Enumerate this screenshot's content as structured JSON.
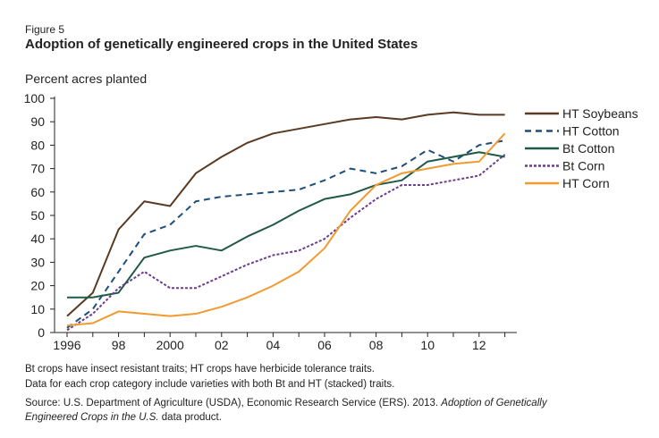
{
  "figure_label": "Figure 5",
  "chart_data": {
    "type": "line",
    "title": "Adoption of genetically engineered crops in the United States",
    "ylabel": "Percent acres planted",
    "xlabel": "",
    "ylim": [
      0,
      100
    ],
    "xlim": [
      1996,
      2013
    ],
    "yticks": [
      "0",
      "10",
      "20",
      "30",
      "40",
      "50",
      "60",
      "70",
      "80",
      "90",
      "100"
    ],
    "xticks": [
      {
        "v": 1996,
        "label": "1996"
      },
      {
        "v": 1998,
        "label": "98"
      },
      {
        "v": 2000,
        "label": "2000"
      },
      {
        "v": 2002,
        "label": "02"
      },
      {
        "v": 2004,
        "label": "04"
      },
      {
        "v": 2006,
        "label": "06"
      },
      {
        "v": 2008,
        "label": "08"
      },
      {
        "v": 2010,
        "label": "10"
      },
      {
        "v": 2012,
        "label": "12"
      }
    ],
    "x": [
      1996,
      1997,
      1998,
      1999,
      2000,
      2001,
      2002,
      2003,
      2004,
      2005,
      2006,
      2007,
      2008,
      2009,
      2010,
      2011,
      2012,
      2013
    ],
    "legend_position": "right",
    "grid": false,
    "series": [
      {
        "name": "HT Soybeans",
        "color": "#5a3a22",
        "dash": "",
        "values": [
          7,
          17,
          44,
          56,
          54,
          68,
          75,
          81,
          85,
          87,
          89,
          91,
          92,
          91,
          93,
          94,
          93,
          93
        ]
      },
      {
        "name": "HT Cotton",
        "color": "#1f4e7a",
        "dash": "7,5",
        "values": [
          2,
          10,
          26,
          42,
          46,
          56,
          58,
          59,
          60,
          61,
          65,
          70,
          68,
          71,
          78,
          73,
          80,
          82
        ]
      },
      {
        "name": "Bt Cotton",
        "color": "#1e5a46",
        "dash": "",
        "values": [
          15,
          15,
          17,
          32,
          35,
          37,
          35,
          41,
          46,
          52,
          57,
          59,
          63,
          65,
          73,
          75,
          77,
          75
        ]
      },
      {
        "name": "Bt Corn",
        "color": "#6a3d8f",
        "dash": "3,2",
        "values": [
          1,
          8,
          19,
          26,
          19,
          19,
          24,
          29,
          33,
          35,
          40,
          49,
          57,
          63,
          63,
          65,
          67,
          76
        ]
      },
      {
        "name": "HT Corn",
        "color": "#f09a30",
        "dash": "",
        "values": [
          3,
          4,
          9,
          8,
          7,
          8,
          11,
          15,
          20,
          26,
          36,
          52,
          63,
          68,
          70,
          72,
          73,
          85
        ]
      }
    ]
  },
  "notes": {
    "line1": "Bt crops have insect resistant traits; HT crops have herbicide tolerance traits.",
    "line2": "Data for each crop category include varieties with both Bt and HT (stacked) traits.",
    "source_prefix": "Source: U.S. Department of Agriculture (USDA), Economic Research Service (ERS). 2013. ",
    "source_title_1": "Adoption of Genetically",
    "source_title_2": "Engineered Crops in the U.S.",
    "source_suffix": " data product."
  }
}
